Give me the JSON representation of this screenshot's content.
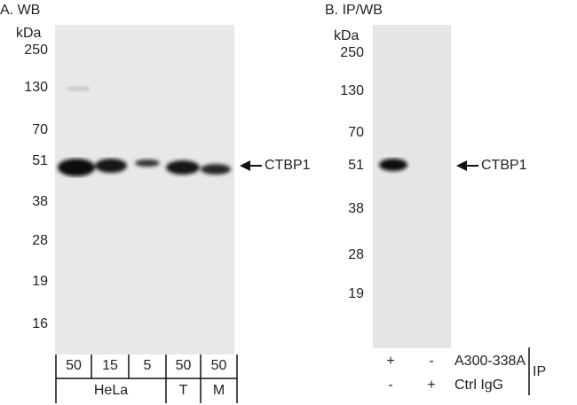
{
  "panelA": {
    "title": "A. WB",
    "unit": "kDa",
    "markers": [
      "250",
      "130",
      "70",
      "51",
      "38",
      "28",
      "19",
      "16"
    ],
    "target": "CTBP1",
    "lanes": [
      "50",
      "15",
      "5",
      "50",
      "50"
    ],
    "groups": [
      "HeLa",
      "T",
      "M"
    ]
  },
  "panelB": {
    "title": "B. IP/WB",
    "unit": "kDa",
    "markers": [
      "250",
      "130",
      "70",
      "51",
      "38",
      "28",
      "19"
    ],
    "target": "CTBP1",
    "rows": [
      {
        "label": "A300-338A",
        "signs": [
          "+",
          "-"
        ]
      },
      {
        "label": "Ctrl IgG",
        "signs": [
          "-",
          "+"
        ]
      }
    ],
    "bracket": "IP"
  }
}
